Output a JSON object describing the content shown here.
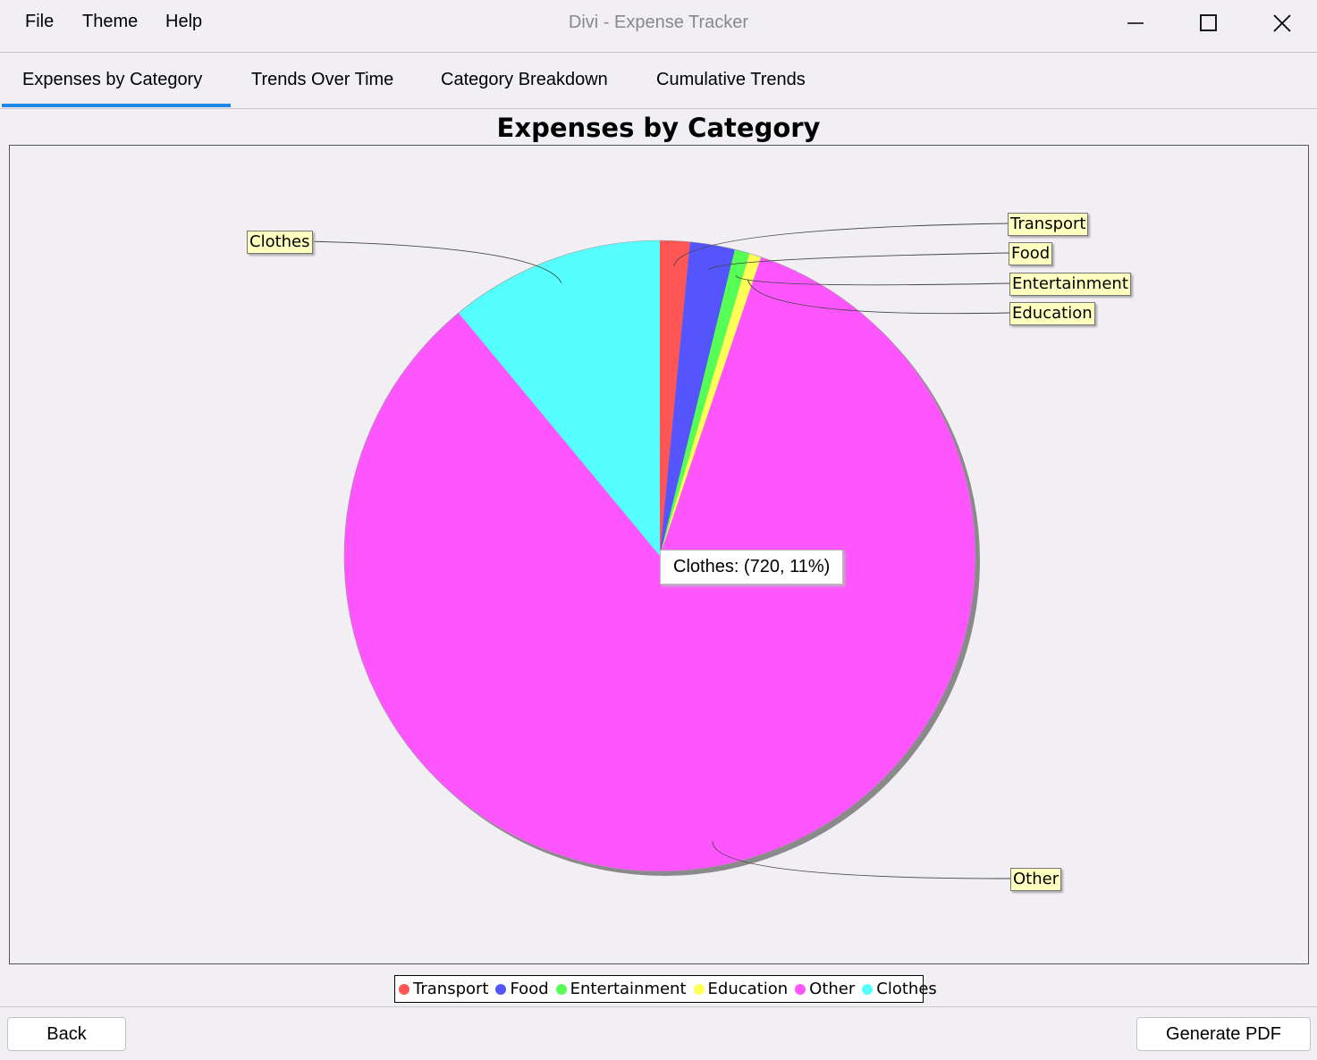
{
  "window": {
    "title": "Divi - Expense Tracker",
    "menu": [
      "File",
      "Theme",
      "Help"
    ]
  },
  "tabs": [
    "Expenses by Category",
    "Trends Over Time",
    "Category Breakdown",
    "Cumulative Trends"
  ],
  "active_tab": 0,
  "tooltip": "Clothes: (720, 11%)",
  "buttons": {
    "back": "Back",
    "generate_pdf": "Generate PDF"
  },
  "colors": {
    "accent": "#1e88e5",
    "Transport": "#ff5555",
    "Food": "#5555ff",
    "Entertainment": "#55ff55",
    "Education": "#ffff55",
    "Other": "#ff55ff",
    "Clothes": "#55ffff"
  },
  "chart_data": {
    "type": "pie",
    "title": "Expenses by Category",
    "categories": [
      "Transport",
      "Food",
      "Entertainment",
      "Education",
      "Other",
      "Clothes"
    ],
    "values": [
      100,
      150,
      50,
      40,
      5480,
      720
    ],
    "legend": "bottom"
  }
}
